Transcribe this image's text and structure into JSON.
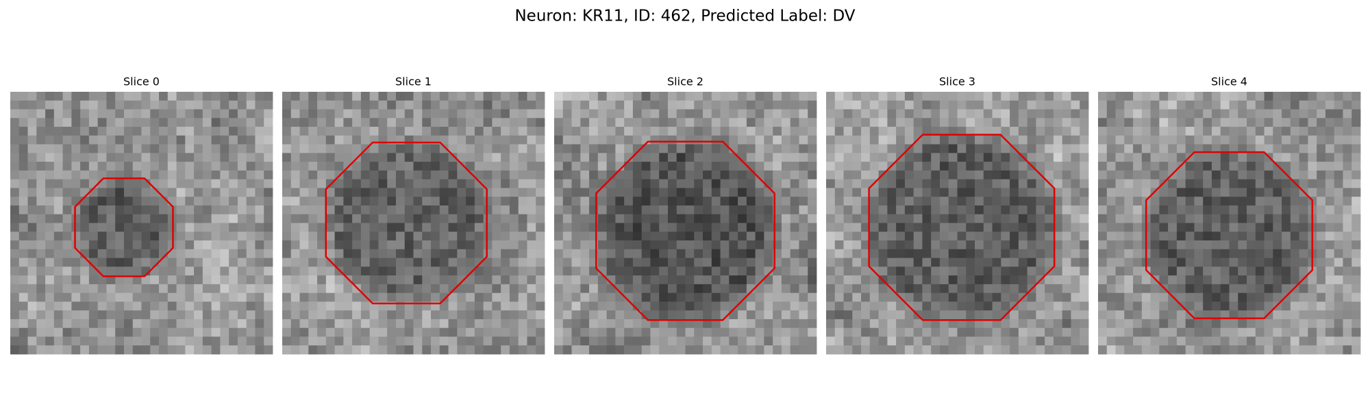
{
  "title": "Neuron: KR11, ID: 462, Predicted Label: DV",
  "panels": [
    {
      "title": "Slice 0"
    },
    {
      "title": "Slice 1"
    },
    {
      "title": "Slice 2"
    },
    {
      "title": "Slice 3"
    },
    {
      "title": "Slice 4"
    }
  ]
}
